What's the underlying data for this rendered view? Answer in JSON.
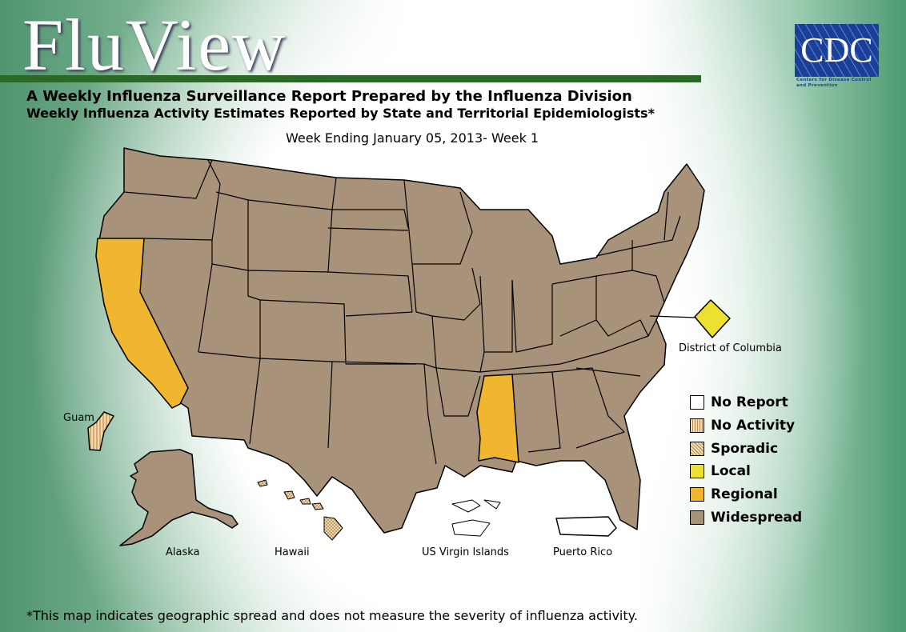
{
  "header": {
    "logo_text": "FluView",
    "agency_logo": "CDC",
    "agency_name": "Centers for Disease Control and Prevention",
    "title": "A Weekly Influenza Surveillance Report Prepared by the Influenza Division",
    "subtitle": "Weekly Influenza Activity Estimates Reported by State and Territorial Epidemiologists*",
    "week": "Week Ending January 05, 2013- Week 1"
  },
  "map": {
    "labels": {
      "dc": "District of Columbia",
      "guam": "Guam",
      "alaska": "Alaska",
      "hawaii": "Hawaii",
      "usvi": "US Virgin Islands",
      "pr": "Puerto Rico"
    },
    "activity": {
      "default": "Widespread",
      "California": "Regional",
      "Mississippi": "Regional",
      "District of Columbia": "Local",
      "Alaska": "Widespread",
      "Hawaii": "Sporadic",
      "Guam": "No Activity",
      "Puerto Rico": "No Report",
      "US Virgin Islands": "No Report"
    }
  },
  "legend": [
    {
      "label": "No Report",
      "color": "#ffffff",
      "pattern": "none"
    },
    {
      "label": "No Activity",
      "color": "#f6d9a8",
      "pattern": "vertical-stripes"
    },
    {
      "label": "Sporadic",
      "color": "#f3dcb0",
      "pattern": "crosshatch"
    },
    {
      "label": "Local",
      "color": "#ece030"
    },
    {
      "label": "Regional",
      "color": "#f0b630"
    },
    {
      "label": "Widespread",
      "color": "#a8927a"
    }
  ],
  "footnote": "*This map indicates geographic spread and does not measure the severity of influenza activity."
}
